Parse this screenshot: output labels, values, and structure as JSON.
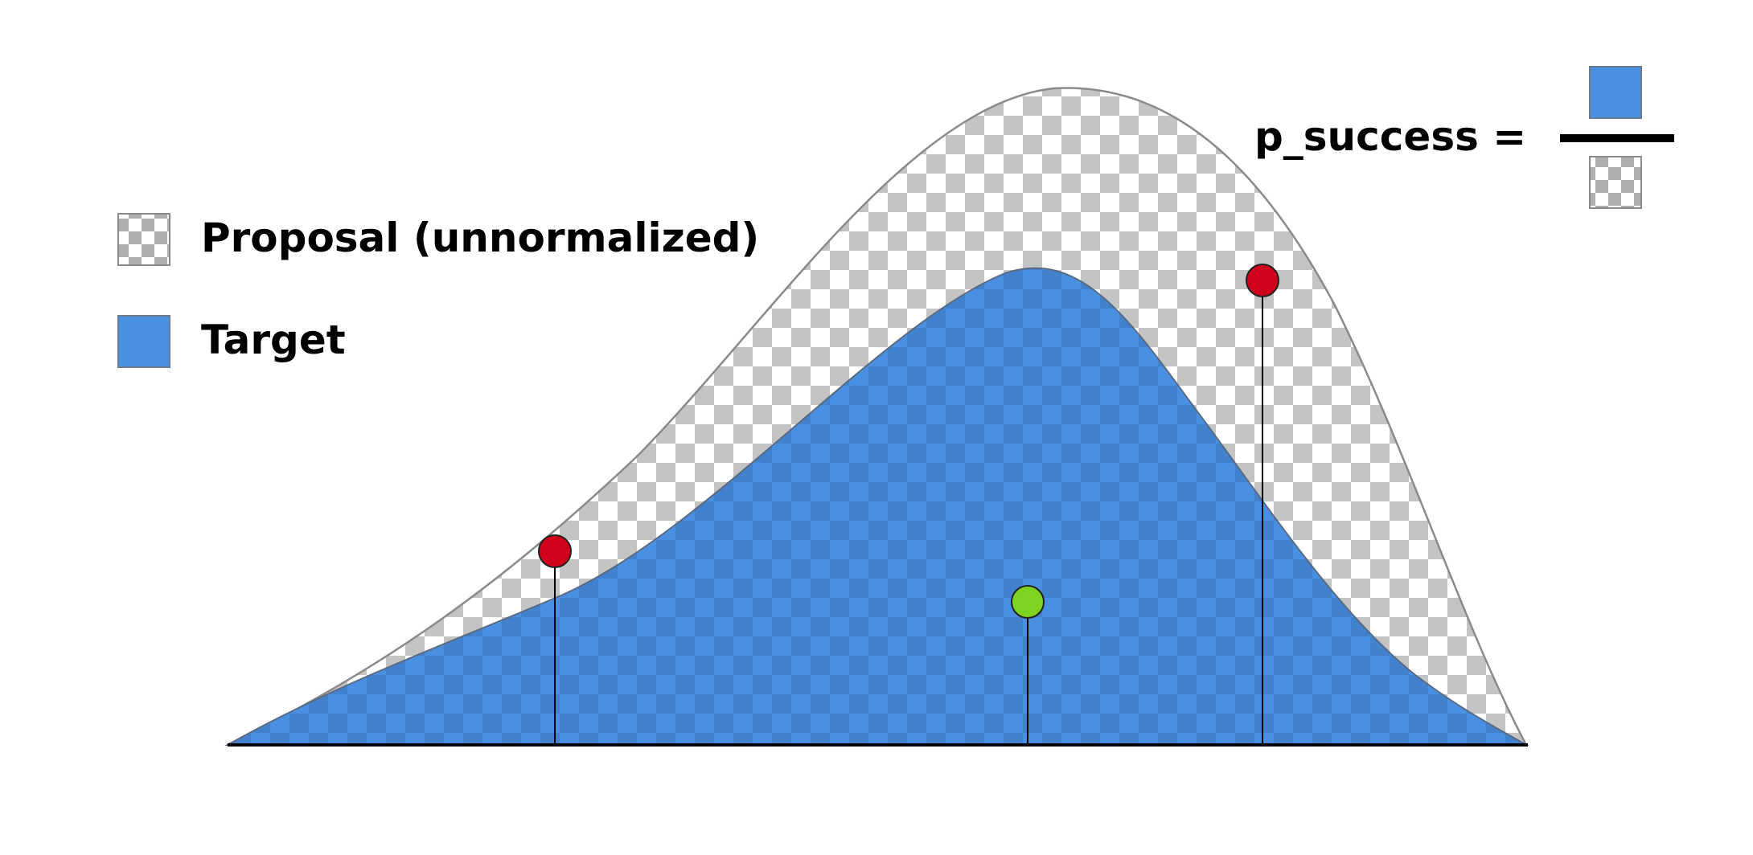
{
  "legend": {
    "items": [
      {
        "label": "Proposal (unnormalized)",
        "swatch": "checker"
      },
      {
        "label": "Target",
        "swatch": "blue"
      }
    ]
  },
  "formula": {
    "label": "p_success ="
  },
  "colors": {
    "target_blue": "#4A90E2",
    "checker_gray": "#C4C4C4",
    "checker_white": "#FFFFFF",
    "rejected_point": "#D0021B",
    "accepted_point": "#7ED321",
    "axis": "#000000",
    "curve_outline": "#8A8A8A"
  },
  "samples": [
    {
      "status": "rejected"
    },
    {
      "status": "accepted"
    },
    {
      "status": "rejected"
    }
  ]
}
